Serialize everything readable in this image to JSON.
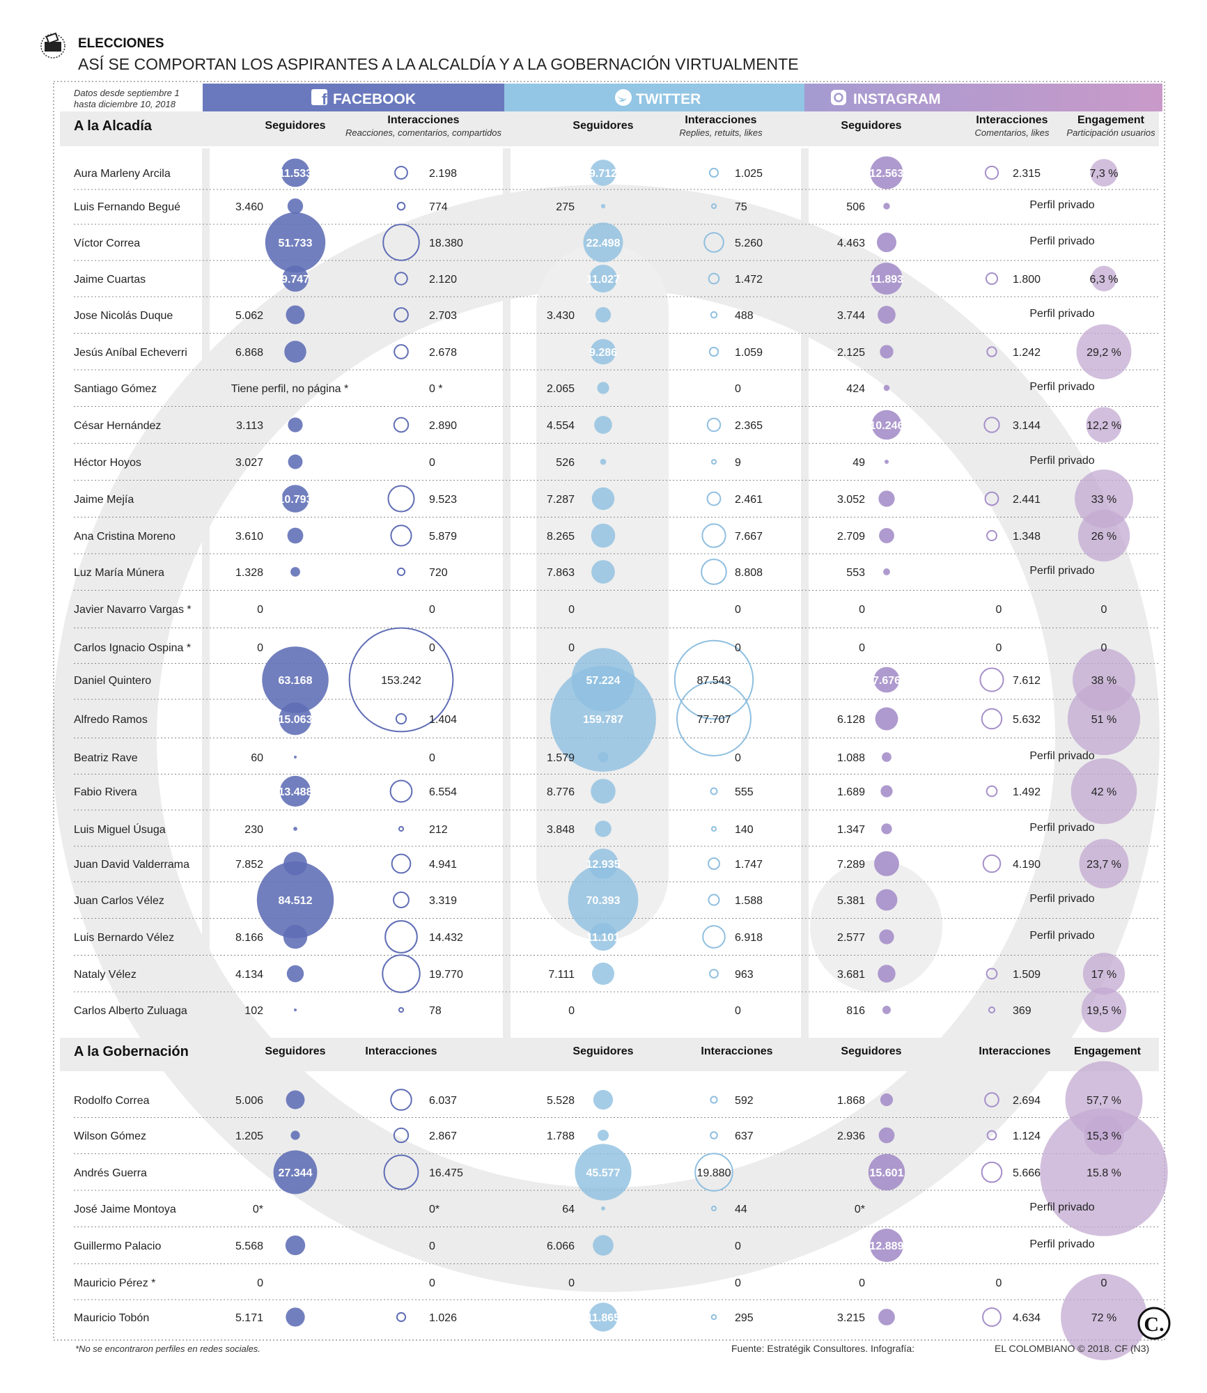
{
  "header": {
    "kicker": "ELECCIONES",
    "title": "ASÍ SE COMPORTAN LOS ASPIRANTES A LA ALCALDÍA Y A LA GOBERNACIÓN VIRTUALMENTE",
    "date_note": "Datos desde septiembre 1 hasta diciembre 10, 2018"
  },
  "networks": {
    "facebook": "FACEBOOK",
    "twitter": "TWITTER",
    "instagram": "INSTAGRAM"
  },
  "columns": {
    "seguidores": "Seguidores",
    "interacciones": "Interacciones",
    "engagement": "Engagement",
    "fb_int_sub": "Reacciones, comentarios, compartidos",
    "tw_int_sub": "Replies, retuits, likes",
    "ig_int_sub": "Comentarios, likes",
    "eng_sub": "Participación usuarios"
  },
  "colors": {
    "facebook": "#5f6db5",
    "twitter": "#8fbfe0",
    "instagram": "#a58fc9",
    "engagement": "#c3a9d2",
    "watermark": "#ebebeb"
  },
  "footer": {
    "note": "*No se encontraron perfiles en redes sociales.",
    "source": "Fuente: Estratégik Consultores. Infografía:",
    "credit": "EL COLOMBIANO © 2018. CF (N3)"
  },
  "chart_data": [
    {
      "type": "table",
      "title": "A la Alcadía",
      "columns": [
        "Seguidores",
        "Interacciones",
        "Seguidores",
        "Interacciones",
        "Seguidores",
        "Interacciones",
        "Engagement"
      ],
      "rows": [
        {
          "name": "Aura Marleny Arcila",
          "fb_seg": "11.533",
          "fb_int": "2.198",
          "tw_seg": "9.712",
          "tw_int": "1.025",
          "ig_seg": "12.563",
          "ig_int": "2.315",
          "eng": "7,3 %"
        },
        {
          "name": "Luis Fernando Begué",
          "fb_seg": "3.460",
          "fb_int": "774",
          "tw_seg": "275",
          "tw_int": "75",
          "ig_seg": "506",
          "ig_int": "Perfil privado",
          "eng": ""
        },
        {
          "name": "Víctor Correa",
          "fb_seg": "51.733",
          "fb_int": "18.380",
          "tw_seg": "22.498",
          "tw_int": "5.260",
          "ig_seg": "4.463",
          "ig_int": "Perfil privado",
          "eng": ""
        },
        {
          "name": "Jaime Cuartas",
          "fb_seg": "9.747",
          "fb_int": "2.120",
          "tw_seg": "11.027",
          "tw_int": "1.472",
          "ig_seg": "11.893",
          "ig_int": "1.800",
          "eng": "6,3 %"
        },
        {
          "name": "Jose Nicolás Duque",
          "fb_seg": "5.062",
          "fb_int": "2.703",
          "tw_seg": "3.430",
          "tw_int": "488",
          "ig_seg": "3.744",
          "ig_int": "Perfil privado",
          "eng": ""
        },
        {
          "name": "Jesús Aníbal Echeverri",
          "fb_seg": "6.868",
          "fb_int": "2.678",
          "tw_seg": "9.286",
          "tw_int": "1.059",
          "ig_seg": "2.125",
          "ig_int": "1.242",
          "eng": "29,2 %"
        },
        {
          "name": "Santiago Gómez",
          "fb_seg": "Tiene perfil, no página *",
          "fb_int": "0 *",
          "tw_seg": "2.065",
          "tw_int": "0",
          "ig_seg": "424",
          "ig_int": "Perfil privado",
          "eng": ""
        },
        {
          "name": "César Hernández",
          "fb_seg": "3.113",
          "fb_int": "2.890",
          "tw_seg": "4.554",
          "tw_int": "2.365",
          "ig_seg": "10.246",
          "ig_int": "3.144",
          "eng": "12,2 %"
        },
        {
          "name": "Héctor Hoyos",
          "fb_seg": "3.027",
          "fb_int": "0",
          "tw_seg": "526",
          "tw_int": "9",
          "ig_seg": "49",
          "ig_int": "Perfil privado",
          "eng": ""
        },
        {
          "name": "Jaime Mejía",
          "fb_seg": "10.793",
          "fb_int": "9.523",
          "tw_seg": "7.287",
          "tw_int": "2.461",
          "ig_seg": "3.052",
          "ig_int": "2.441",
          "eng": "33 %"
        },
        {
          "name": "Ana Cristina Moreno",
          "fb_seg": "3.610",
          "fb_int": "5.879",
          "tw_seg": "8.265",
          "tw_int": "7.667",
          "ig_seg": "2.709",
          "ig_int": "1.348",
          "eng": "26 %"
        },
        {
          "name": "Luz María Múnera",
          "fb_seg": "1.328",
          "fb_int": "720",
          "tw_seg": "7.863",
          "tw_int": "8.808",
          "ig_seg": "553",
          "ig_int": "Perfil privado",
          "eng": ""
        },
        {
          "name": "Javier Navarro Vargas *",
          "fb_seg": "0",
          "fb_int": "0",
          "tw_seg": "0",
          "tw_int": "0",
          "ig_seg": "0",
          "ig_int": "0",
          "eng": "0"
        },
        {
          "name": "Carlos Ignacio Ospina *",
          "fb_seg": "0",
          "fb_int": "0",
          "tw_seg": "0",
          "tw_int": "0",
          "ig_seg": "0",
          "ig_int": "0",
          "eng": "0"
        },
        {
          "name": "Daniel Quintero",
          "fb_seg": "63.168",
          "fb_int": "153.242",
          "tw_seg": "57.224",
          "tw_int": "87.543",
          "ig_seg": "7.676",
          "ig_int": "7.612",
          "eng": "38 %"
        },
        {
          "name": "Alfredo Ramos",
          "fb_seg": "15.063",
          "fb_int": "1.404",
          "tw_seg": "159.787",
          "tw_int": "77.707",
          "ig_seg": "6.128",
          "ig_int": "5.632",
          "eng": "51 %"
        },
        {
          "name": "Beatriz Rave",
          "fb_seg": "60",
          "fb_int": "0",
          "tw_seg": "1.579",
          "tw_int": "0",
          "ig_seg": "1.088",
          "ig_int": "Perfil privado",
          "eng": ""
        },
        {
          "name": "Fabio Rivera",
          "fb_seg": "13.488",
          "fb_int": "6.554",
          "tw_seg": "8.776",
          "tw_int": "555",
          "ig_seg": "1.689",
          "ig_int": "1.492",
          "eng": "42 %"
        },
        {
          "name": "Luis Miguel Úsuga",
          "fb_seg": "230",
          "fb_int": "212",
          "tw_seg": "3.848",
          "tw_int": "140",
          "ig_seg": "1.347",
          "ig_int": "Perfil privado",
          "eng": ""
        },
        {
          "name": "Juan David Valderrama",
          "fb_seg": "7.852",
          "fb_int": "4.941",
          "tw_seg": "12.935",
          "tw_int": "1.747",
          "ig_seg": "7.289",
          "ig_int": "4.190",
          "eng": "23,7 %"
        },
        {
          "name": "Juan Carlos Vélez",
          "fb_seg": "84.512",
          "fb_int": "3.319",
          "tw_seg": "70.393",
          "tw_int": "1.588",
          "ig_seg": "5.381",
          "ig_int": "Perfil privado",
          "eng": ""
        },
        {
          "name": "Luis Bernardo Vélez",
          "fb_seg": "8.166",
          "fb_int": "14.432",
          "tw_seg": "11.101",
          "tw_int": "6.918",
          "ig_seg": "2.577",
          "ig_int": "Perfil privado",
          "eng": ""
        },
        {
          "name": "Nataly Vélez",
          "fb_seg": "4.134",
          "fb_int": "19.770",
          "tw_seg": "7.111",
          "tw_int": "963",
          "ig_seg": "3.681",
          "ig_int": "1.509",
          "eng": "17 %"
        },
        {
          "name": "Carlos Alberto Zuluaga",
          "fb_seg": "102",
          "fb_int": "78",
          "tw_seg": "0",
          "tw_int": "0",
          "ig_seg": "816",
          "ig_int": "369",
          "eng": "19,5 %"
        }
      ]
    },
    {
      "type": "table",
      "title": "A la Gobernación",
      "columns": [
        "Seguidores",
        "Interacciones",
        "Seguidores",
        "Interacciones",
        "Seguidores",
        "Interacciones",
        "Engagement"
      ],
      "rows": [
        {
          "name": "Rodolfo Correa",
          "fb_seg": "5.006",
          "fb_int": "6.037",
          "tw_seg": "5.528",
          "tw_int": "592",
          "ig_seg": "1.868",
          "ig_int": "2.694",
          "eng": "57,7 %"
        },
        {
          "name": "Wilson Gómez",
          "fb_seg": "1.205",
          "fb_int": "2.867",
          "tw_seg": "1.788",
          "tw_int": "637",
          "ig_seg": "2.936",
          "ig_int": "1.124",
          "eng": "15,3 %"
        },
        {
          "name": "Andrés Guerra",
          "fb_seg": "27.344",
          "fb_int": "16.475",
          "tw_seg": "45.577",
          "tw_int": "19.880",
          "ig_seg": "15.601",
          "ig_int": "5.666",
          "eng": "15.8 %"
        },
        {
          "name": "José Jaime Montoya",
          "fb_seg": "0*",
          "fb_int": "0*",
          "tw_seg": "64",
          "tw_int": "44",
          "ig_seg": "0*",
          "ig_int": "Perfil privado",
          "eng": ""
        },
        {
          "name": "Guillermo Palacio",
          "fb_seg": "5.568",
          "fb_int": "0",
          "tw_seg": "6.066",
          "tw_int": "0",
          "ig_seg": "12.889",
          "ig_int": "Perfil privado",
          "eng": ""
        },
        {
          "name": "Mauricio Pérez *",
          "fb_seg": "0",
          "fb_int": "0",
          "tw_seg": "0",
          "tw_int": "0",
          "ig_seg": "0",
          "ig_int": "0",
          "eng": "0"
        },
        {
          "name": "Mauricio Tobón",
          "fb_seg": "5.171",
          "fb_int": "1.026",
          "tw_seg": "11.865",
          "tw_int": "295",
          "ig_seg": "3.215",
          "ig_int": "4.634",
          "eng": "72 %"
        }
      ]
    }
  ]
}
